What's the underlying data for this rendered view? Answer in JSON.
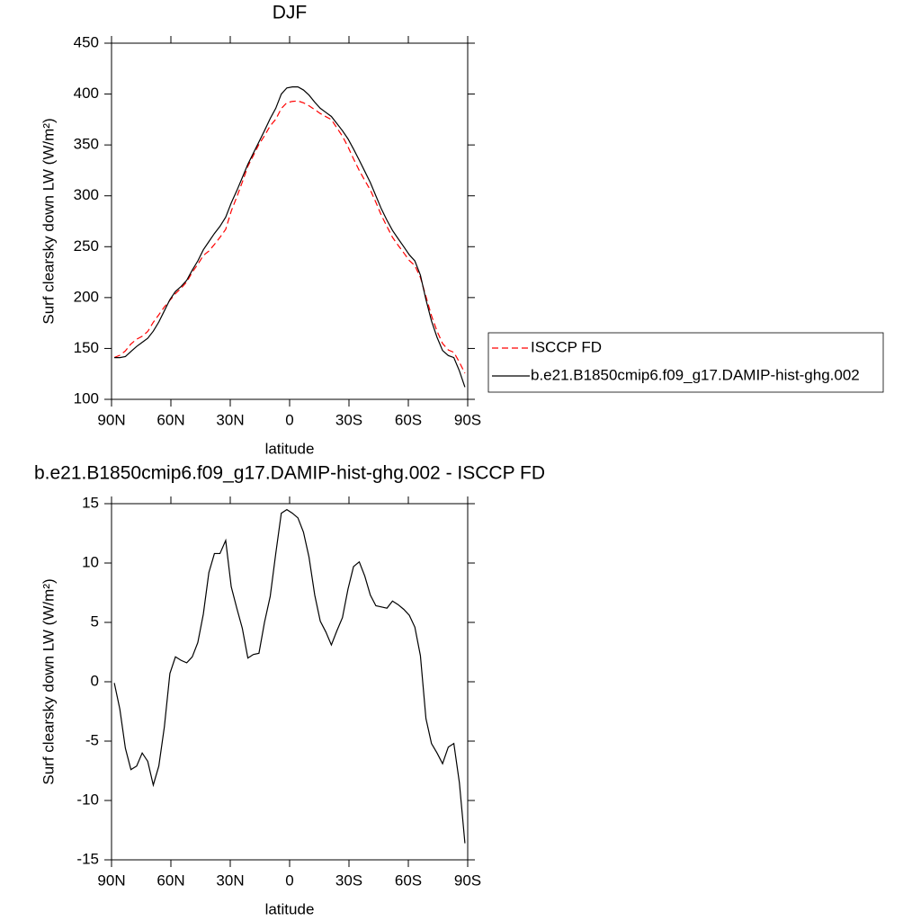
{
  "chart_data": [
    {
      "type": "line",
      "title": "DJF",
      "x_label": "latitude",
      "y_label": "Surf clearsky down LW (W/m²)",
      "x": [
        88.6,
        85.8,
        83.0,
        80.2,
        77.3,
        74.5,
        71.7,
        68.9,
        66.1,
        63.3,
        60.5,
        57.7,
        54.8,
        52.0,
        49.2,
        46.4,
        43.6,
        40.8,
        38.0,
        35.2,
        32.3,
        29.5,
        26.7,
        23.9,
        21.1,
        18.3,
        15.5,
        12.7,
        9.8,
        7.0,
        4.2,
        1.4,
        -1.4,
        -4.2,
        -7.0,
        -9.8,
        -12.7,
        -15.5,
        -18.3,
        -21.1,
        -23.9,
        -26.7,
        -29.5,
        -32.3,
        -35.2,
        -38.0,
        -40.8,
        -43.6,
        -46.4,
        -49.2,
        -52.0,
        -54.8,
        -57.7,
        -60.5,
        -63.3,
        -66.1,
        -68.9,
        -71.7,
        -74.5,
        -77.3,
        -80.2,
        -83.0,
        -85.8,
        -88.6
      ],
      "series": [
        {
          "name": "ISCCP FD",
          "color": "#ff0000",
          "style": "dashed",
          "values": [
            141.1,
            143.3,
            147.6,
            154.4,
            159.1,
            162.0,
            166.7,
            175.7,
            183.1,
            190.8,
            197.3,
            203.9,
            209.2,
            215.4,
            224.9,
            232.7,
            241.3,
            245.8,
            252.2,
            259.2,
            267.1,
            285.0,
            298.8,
            313.5,
            329.0,
            339.7,
            350.6,
            359.0,
            368.8,
            375.2,
            385.8,
            391.5,
            392.8,
            393.2,
            391.4,
            388.5,
            384.7,
            380.9,
            377.8,
            374.9,
            366.7,
            358.6,
            348.2,
            336.3,
            324.9,
            315.1,
            305.7,
            293.6,
            280.7,
            269.8,
            259.2,
            251.5,
            243.9,
            236.4,
            231.4,
            219.8,
            201.1,
            182.2,
            167.0,
            154.9,
            148.5,
            146.2,
            136.5,
            125.6
          ]
        },
        {
          "name": "b.e21.B1850cmip6.f09_g17.DAMIP-hist-ghg.002",
          "color": "#000000",
          "style": "solid",
          "values": [
            141,
            141,
            142,
            147,
            152,
            156,
            160,
            167,
            176,
            187,
            198,
            206,
            211,
            217,
            227,
            236,
            247,
            255,
            263,
            270,
            279,
            293,
            305,
            318,
            331,
            342,
            353,
            364,
            376,
            386,
            400,
            406,
            407,
            407,
            404,
            399,
            392,
            386,
            382,
            378,
            371,
            364,
            356,
            346,
            335,
            324,
            313,
            300,
            287,
            276,
            266,
            258,
            250,
            242,
            236,
            222,
            198,
            177,
            161,
            148,
            143,
            141,
            128,
            112
          ]
        }
      ],
      "xlim": [
        90,
        -90
      ],
      "xticks": [
        {
          "value": 90,
          "label": "90N"
        },
        {
          "value": 60,
          "label": "60N"
        },
        {
          "value": 30,
          "label": "30N"
        },
        0,
        {
          "value": -30,
          "label": "30S"
        },
        {
          "value": -60,
          "label": "60S"
        },
        {
          "value": -90,
          "label": "90S"
        }
      ],
      "ylim": [
        100,
        450
      ],
      "yticks": [
        100,
        150,
        200,
        250,
        300,
        350,
        400,
        450
      ],
      "legend": "right"
    },
    {
      "type": "line",
      "title": "b.e21.B1850cmip6.f09_g17.DAMIP-hist-ghg.002 - ISCCP FD",
      "x_label": "latitude",
      "y_label": "Surf clearsky down LW (W/m²)",
      "x": [
        88.6,
        85.8,
        83.0,
        80.2,
        77.3,
        74.5,
        71.7,
        68.9,
        66.1,
        63.3,
        60.5,
        57.7,
        54.8,
        52.0,
        49.2,
        46.4,
        43.6,
        40.8,
        38.0,
        35.2,
        32.3,
        29.5,
        26.7,
        23.9,
        21.1,
        18.3,
        15.5,
        12.7,
        9.8,
        7.0,
        4.2,
        1.4,
        -1.4,
        -4.2,
        -7.0,
        -9.8,
        -12.7,
        -15.5,
        -18.3,
        -21.1,
        -23.9,
        -26.7,
        -29.5,
        -32.3,
        -35.2,
        -38.0,
        -40.8,
        -43.6,
        -46.4,
        -49.2,
        -52.0,
        -54.8,
        -57.7,
        -60.5,
        -63.3,
        -66.1,
        -68.9,
        -71.7,
        -74.5,
        -77.3,
        -80.2,
        -83.0,
        -85.8,
        -88.6
      ],
      "values": [
        -0.1,
        -2.3,
        -5.6,
        -7.4,
        -7.1,
        -6.0,
        -6.7,
        -8.7,
        -7.1,
        -3.8,
        0.7,
        2.1,
        1.8,
        1.6,
        2.1,
        3.3,
        5.7,
        9.2,
        10.8,
        10.8,
        11.9,
        8.0,
        6.2,
        4.5,
        2.0,
        2.3,
        2.4,
        5.0,
        7.2,
        10.8,
        14.2,
        14.5,
        14.2,
        13.8,
        12.6,
        10.5,
        7.3,
        5.1,
        4.2,
        3.1,
        4.3,
        5.4,
        7.8,
        9.7,
        10.1,
        8.9,
        7.3,
        6.4,
        6.3,
        6.2,
        6.8,
        6.5,
        6.1,
        5.6,
        4.6,
        2.2,
        -3.1,
        -5.2,
        -6.0,
        -6.9,
        -5.5,
        -5.2,
        -8.5,
        -13.6
      ],
      "color": "#000000",
      "xlim": [
        90,
        -90
      ],
      "xticks": [
        {
          "value": 90,
          "label": "90N"
        },
        {
          "value": 60,
          "label": "60N"
        },
        {
          "value": 30,
          "label": "30N"
        },
        0,
        {
          "value": -30,
          "label": "30S"
        },
        {
          "value": -60,
          "label": "60S"
        },
        {
          "value": -90,
          "label": "90S"
        }
      ],
      "ylim": [
        -15,
        15
      ],
      "yticks": [
        -15,
        -10,
        -5,
        0,
        5,
        10,
        15
      ]
    }
  ]
}
